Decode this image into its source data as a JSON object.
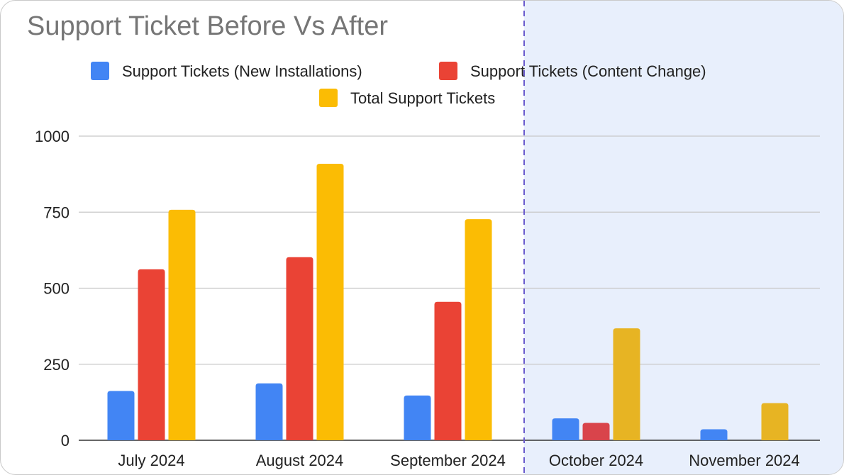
{
  "chart_data": {
    "type": "bar",
    "title": "Support Ticket Before Vs After",
    "categories": [
      "July 2024",
      "August 2024",
      "September 2024",
      "October 2024",
      "November 2024"
    ],
    "series": [
      {
        "name": "Support Tickets (New Installations)",
        "color": "#4285F4",
        "values": [
          162,
          187,
          147,
          72,
          36
        ]
      },
      {
        "name": "Support Tickets (Content Change)",
        "color": "#EA4335",
        "values": [
          562,
          602,
          455,
          57,
          0
        ]
      },
      {
        "name": "Total Support Tickets",
        "color": "#FBBC04",
        "values": [
          758,
          909,
          727,
          368,
          122
        ]
      }
    ],
    "yticks": [
      0,
      250,
      500,
      750,
      1000
    ],
    "ylim": [
      0,
      1000
    ],
    "grid": true,
    "legend_position": "top",
    "highlight_region": {
      "categories": [
        "October 2024",
        "November 2024"
      ],
      "color": "#E8EFFC",
      "divider_color": "#6A5ACD"
    }
  }
}
